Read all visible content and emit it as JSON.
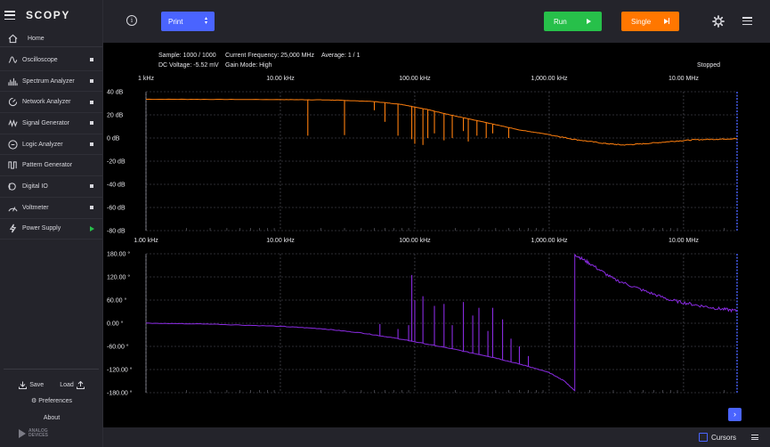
{
  "app": {
    "logo": "SCOPY"
  },
  "sidebar": {
    "home": "Home",
    "items": [
      {
        "label": "Oscilloscope",
        "icon": "oscilloscope-icon",
        "status": "dot"
      },
      {
        "label": "Spectrum Analyzer",
        "icon": "spectrum-analyzer-icon",
        "status": "dot"
      },
      {
        "label": "Network Analyzer",
        "icon": "network-analyzer-icon",
        "status": "dot"
      },
      {
        "label": "Signal Generator",
        "icon": "signal-generator-icon",
        "status": "dot"
      },
      {
        "label": "Logic Analyzer",
        "icon": "logic-analyzer-icon",
        "status": "dot"
      },
      {
        "label": "Pattern Generator",
        "icon": "pattern-generator-icon",
        "status": "none"
      },
      {
        "label": "Digital IO",
        "icon": "digital-io-icon",
        "status": "dot"
      },
      {
        "label": "Voltmeter",
        "icon": "voltmeter-icon",
        "status": "dot"
      },
      {
        "label": "Power Supply",
        "icon": "power-supply-icon",
        "status": "running"
      }
    ],
    "save": "Save",
    "load": "Load",
    "preferences": "Preferences",
    "about": "About",
    "brand": [
      "ANALOG",
      "DEVICES"
    ]
  },
  "toolbar": {
    "info": "i",
    "print": "Print",
    "run": "Run",
    "single": "Single"
  },
  "status": {
    "sample": "Sample: 1000 / 1000",
    "frequency": "Current Frequency: 25,000 MHz",
    "average": "Average: 1 / 1",
    "dc_voltage": "DC Voltage: -5.52 mV",
    "gain_mode": "Gain Mode: High",
    "state": "Stopped"
  },
  "bottom": {
    "cursors": "Cursors",
    "next": "›"
  },
  "colors": {
    "magnitude": "#ff7f0e",
    "phase": "#8a2be2",
    "accent": "#4a64ff",
    "run": "#27c04a",
    "single": "#ff7700"
  },
  "chart_data": [
    {
      "type": "line",
      "name": "magnitude",
      "x_axis": "log",
      "x_ticks": [
        "1 kHz",
        "10.00 kHz",
        "100.00 kHz",
        "1,000.00 kHz",
        "10.00 MHz"
      ],
      "y_ticks": [
        "40 dB",
        "20 dB",
        "0 dB",
        "-20 dB",
        "-40 dB",
        "-60 dB",
        "-80 dB"
      ],
      "ylim": [
        -80,
        40
      ],
      "xlim_hz": [
        1000,
        25000000
      ],
      "grid": true,
      "series": [
        {
          "values": [
            [
              1000,
              33.5
            ],
            [
              3000,
              33.4
            ],
            [
              10000,
              33.2
            ],
            [
              20000,
              33
            ],
            [
              30000,
              32.5
            ],
            [
              50000,
              31.5
            ],
            [
              80000,
              29
            ],
            [
              120000,
              25
            ],
            [
              200000,
              19
            ],
            [
              350000,
              13
            ],
            [
              600000,
              7
            ],
            [
              1000000,
              3
            ],
            [
              1500000,
              -1
            ],
            [
              2500000,
              -4.5
            ],
            [
              3500000,
              -6
            ],
            [
              5000000,
              -5
            ],
            [
              8000000,
              -3
            ],
            [
              12000000,
              -1.5
            ],
            [
              18000000,
              -1
            ],
            [
              25000000,
              -0.5
            ]
          ]
        }
      ],
      "spikes": [
        [
          16000,
          2
        ],
        [
          30000,
          2.5
        ],
        [
          50000,
          24
        ],
        [
          60000,
          14
        ],
        [
          75000,
          2
        ],
        [
          95000,
          -1
        ],
        [
          100000,
          -5
        ],
        [
          115000,
          -6
        ],
        [
          125000,
          0
        ],
        [
          140000,
          4
        ],
        [
          165000,
          -2
        ],
        [
          190000,
          0
        ],
        [
          230000,
          6
        ],
        [
          250000,
          -3
        ],
        [
          290000,
          2
        ],
        [
          340000,
          0
        ],
        [
          380000,
          4
        ],
        [
          500000,
          0
        ],
        [
          590000,
          7
        ]
      ]
    },
    {
      "type": "line",
      "name": "phase",
      "x_axis": "log",
      "x_ticks": [
        "1.00 kHz",
        "10.00 kHz",
        "100.00 kHz",
        "1,000.00 kHz",
        "10.00 MHz"
      ],
      "y_ticks": [
        "180.00 °",
        "120.00 °",
        "60.00 °",
        "0.00 °",
        "-60.00 °",
        "-120.00 °",
        "-180.00 °"
      ],
      "ylim": [
        -180,
        180
      ],
      "xlim_hz": [
        1000,
        25000000
      ],
      "grid": true,
      "series": [
        {
          "values": [
            [
              1000,
              0
            ],
            [
              3000,
              -2
            ],
            [
              10000,
              -8
            ],
            [
              20000,
              -14
            ],
            [
              40000,
              -25
            ],
            [
              70000,
              -38
            ],
            [
              100000,
              -48
            ],
            [
              200000,
              -68
            ],
            [
              400000,
              -90
            ],
            [
              700000,
              -112
            ],
            [
              1000000,
              -128
            ],
            [
              1300000,
              -150
            ],
            [
              1550000,
              -175
            ],
            [
              1560000,
              178
            ],
            [
              2000000,
              155
            ],
            [
              3000000,
              115
            ],
            [
              5000000,
              85
            ],
            [
              8000000,
              60
            ],
            [
              12000000,
              48
            ],
            [
              18000000,
              38
            ],
            [
              25000000,
              32
            ]
          ]
        }
      ],
      "spikes": [
        [
          55000,
          -2
        ],
        [
          75000,
          -15
        ],
        [
          90000,
          -5
        ],
        [
          95000,
          125
        ],
        [
          100000,
          60
        ],
        [
          115000,
          70
        ],
        [
          140000,
          45
        ],
        [
          165000,
          50
        ],
        [
          190000,
          -5
        ],
        [
          230000,
          55
        ],
        [
          270000,
          20
        ],
        [
          300000,
          40
        ],
        [
          350000,
          -20
        ],
        [
          380000,
          40
        ],
        [
          450000,
          10
        ],
        [
          520000,
          -40
        ],
        [
          600000,
          -60
        ],
        [
          700000,
          -85
        ]
      ]
    }
  ]
}
